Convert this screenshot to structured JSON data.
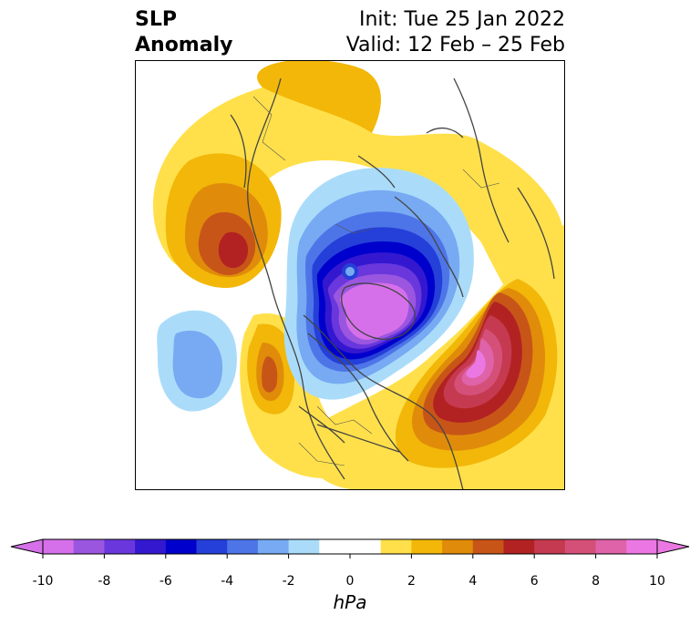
{
  "title": {
    "left_line1": "SLP",
    "left_line2": "Anomaly",
    "right_line1": "Init: Tue 25 Jan 2022",
    "right_line2": "Valid: 12 Feb – 25 Feb"
  },
  "colorbar": {
    "unit": "hPa",
    "ticks": [
      "-10",
      "-8",
      "-6",
      "-4",
      "-2",
      "0",
      "2",
      "4",
      "6",
      "8",
      "10"
    ],
    "colors": [
      "#d670ea",
      "#9b56e0",
      "#6a37dc",
      "#3418d0",
      "#0000cc",
      "#2540d8",
      "#4e75e8",
      "#77aaf2",
      "#aadcfa",
      "#ffffff",
      "#ffffff",
      "#ffe04a",
      "#f2b708",
      "#e08c0a",
      "#c85518",
      "#b22222",
      "#c53a50",
      "#d55079",
      "#de63a8",
      "#eb78e2"
    ],
    "min_color": "#d670ea",
    "max_color": "#eb78e2"
  }
}
